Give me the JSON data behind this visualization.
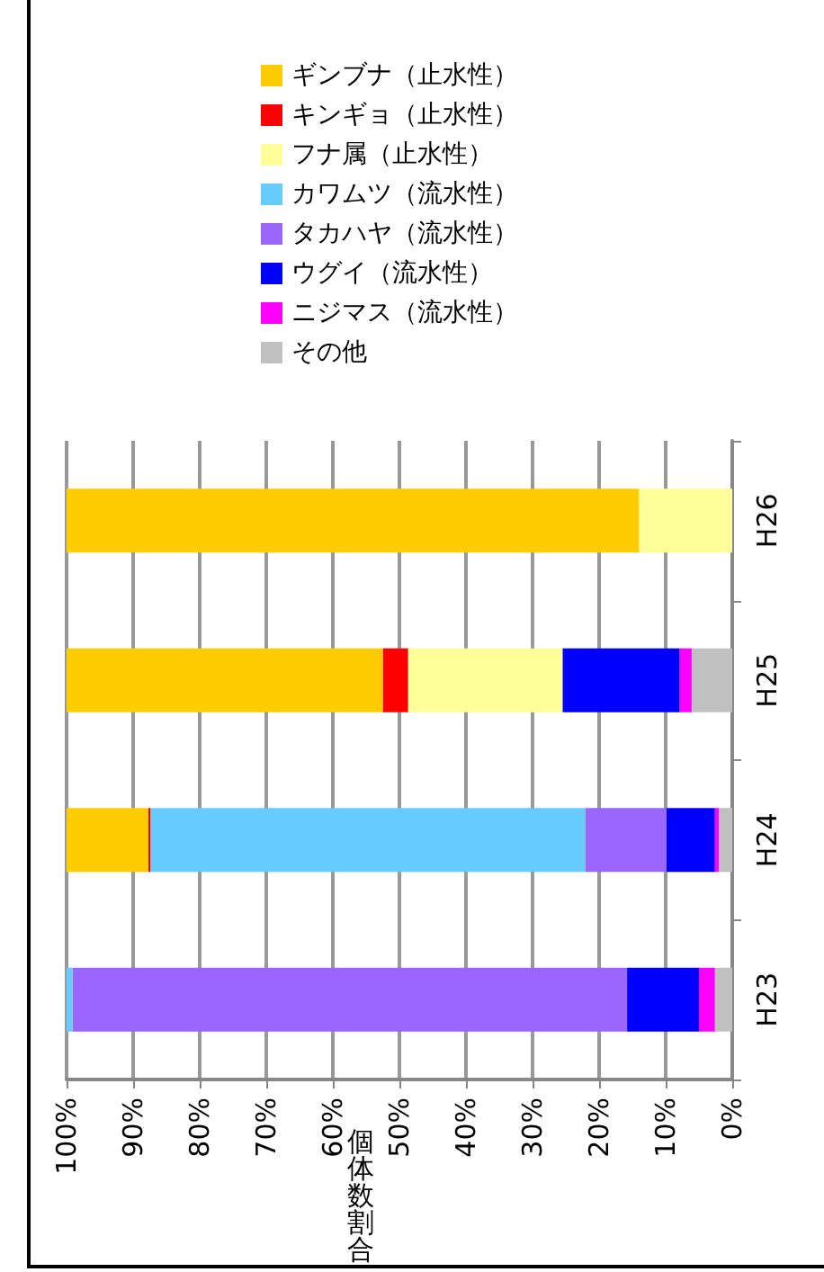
{
  "chart_data": {
    "type": "bar",
    "stacked": true,
    "orientation": "horizontal",
    "xlabel": "個体数割合",
    "categories": [
      "H26",
      "H25",
      "H24",
      "H23"
    ],
    "series": [
      {
        "name": "その他",
        "color": "#c0c0c0",
        "values": [
          0,
          6.1,
          2.0,
          2.6
        ]
      },
      {
        "name": "ニジマス（流水性）",
        "color": "#ff00ff",
        "values": [
          0,
          1.8,
          0.6,
          2.4
        ]
      },
      {
        "name": "ウグイ（流水性）",
        "color": "#0000ff",
        "values": [
          0,
          17.6,
          7.3,
          10.8
        ]
      },
      {
        "name": "タカハヤ（流水性）",
        "color": "#9966ff",
        "values": [
          0,
          0,
          12.2,
          83.3
        ]
      },
      {
        "name": "カワムツ（流水性）",
        "color": "#66ccff",
        "values": [
          0,
          0,
          65.3,
          0.9
        ]
      },
      {
        "name": "フナ属（止水性）",
        "color": "#ffff99",
        "values": [
          14,
          23.2,
          0,
          0
        ]
      },
      {
        "name": "キンギョ（止水性）",
        "color": "#ff0000",
        "values": [
          0,
          3.8,
          0.3,
          0
        ]
      },
      {
        "name": "ギンブナ（止水性）",
        "color": "#ffcc00",
        "values": [
          86,
          47.5,
          12.3,
          0
        ]
      }
    ],
    "xlim": [
      100,
      0
    ],
    "xticks": [
      {
        "value": 100,
        "label": "100%"
      },
      {
        "value": 90,
        "label": "90%"
      },
      {
        "value": 80,
        "label": "80%"
      },
      {
        "value": 70,
        "label": "70%"
      },
      {
        "value": 60,
        "label": "60%"
      },
      {
        "value": 50,
        "label": "50%"
      },
      {
        "value": 40,
        "label": "40%"
      },
      {
        "value": 30,
        "label": "30%"
      },
      {
        "value": 20,
        "label": "20%"
      },
      {
        "value": 10,
        "label": "10%"
      },
      {
        "value": 0,
        "label": "0%"
      }
    ],
    "grid": "x",
    "legend": "top"
  }
}
